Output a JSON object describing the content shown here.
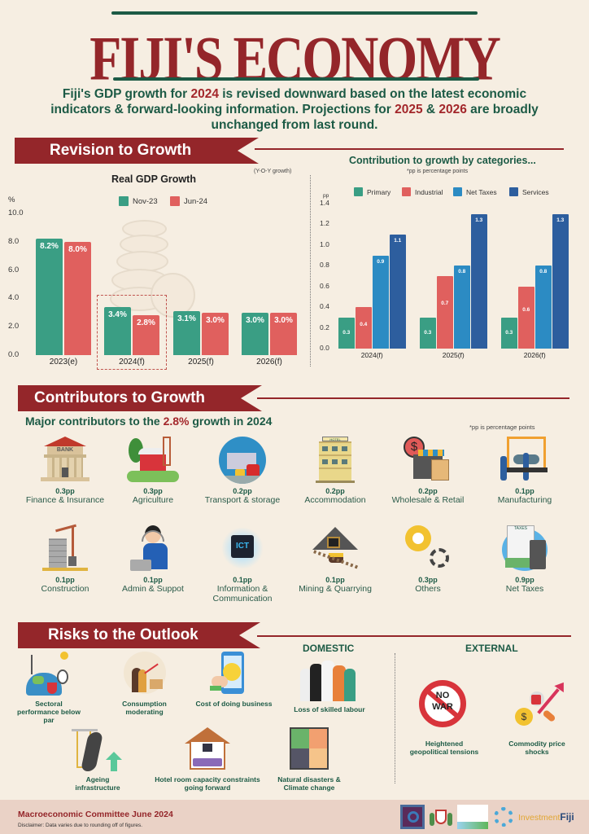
{
  "header": {
    "title": "FIJI'S ECONOMY",
    "intro_parts": [
      "Fiji's GDP growth for ",
      "2024",
      " is revised downward based on the latest economic indicators & forward-looking information. Projections for ",
      "2025",
      " & ",
      "2026",
      " are broadly unchanged from last round."
    ]
  },
  "sections": {
    "revision": "Revision to Growth",
    "contributors": "Contributors to Growth",
    "risks": "Risks to the Outlook"
  },
  "chart_data": [
    {
      "type": "bar",
      "title": "Real GDP Growth",
      "subtitle": "(Y-O-Y growth)",
      "ylabel": "%",
      "ylim": [
        0,
        10
      ],
      "yticks": [
        "0.0",
        "2.0",
        "4.0",
        "6.0",
        "8.0",
        "10.0"
      ],
      "categories": [
        "2023(e)",
        "2024(f)",
        "2025(f)",
        "2026(f)"
      ],
      "series": [
        {
          "name": "Nov-23",
          "color": "#3a9e84",
          "values": [
            8.2,
            3.4,
            3.1,
            3.0
          ],
          "labels": [
            "8.2%",
            "3.4%",
            "3.1%",
            "3.0%"
          ]
        },
        {
          "name": "Jun-24",
          "color": "#e0605e",
          "values": [
            8.0,
            2.8,
            3.0,
            3.0
          ],
          "labels": [
            "8.0%",
            "2.8%",
            "3.0%",
            "3.0%"
          ]
        }
      ],
      "highlight_category": "2024(f)",
      "grid": false,
      "legend_position": "top"
    },
    {
      "type": "bar",
      "title": "Contribution to growth by categories...",
      "subtitle": "*pp is percentage points",
      "ylabel": "pp",
      "ylim": [
        0,
        1.4
      ],
      "yticks": [
        "0.0",
        "0.2",
        "0.4",
        "0.6",
        "0.8",
        "1.0",
        "1.2",
        "1.4"
      ],
      "categories": [
        "2024(f)",
        "2025(f)",
        "2026(f)"
      ],
      "series": [
        {
          "name": "Primary",
          "color": "#3a9e84",
          "values": [
            0.3,
            0.3,
            0.3
          ],
          "labels": [
            "0.3",
            "0.3",
            "0.3"
          ]
        },
        {
          "name": "Industrial",
          "color": "#e0605e",
          "values": [
            0.4,
            0.7,
            0.6
          ],
          "labels": [
            "0.4",
            "0.7",
            "0.6"
          ]
        },
        {
          "name": "Net Taxes",
          "color": "#2c8bc3",
          "values": [
            0.9,
            0.8,
            0.8
          ],
          "labels": [
            "0.9",
            "0.8",
            "0.8"
          ]
        },
        {
          "name": "Services",
          "color": "#2d5e9e",
          "values": [
            1.1,
            1.3,
            1.3
          ],
          "labels": [
            "1.1",
            "1.3",
            "1.3"
          ]
        }
      ],
      "grid": false,
      "legend_position": "top"
    }
  ],
  "contributors": {
    "subtitle_parts": [
      "Major contributors to the ",
      "2.8%",
      " growth in 2024"
    ],
    "note": "*pp is percentage points",
    "items": [
      {
        "pp": "0.3pp",
        "name": "Finance & Insurance",
        "icon": "bank-icon"
      },
      {
        "pp": "0.3pp",
        "name": "Agriculture",
        "icon": "farm-icon"
      },
      {
        "pp": "0.2pp",
        "name": "Transport & storage",
        "icon": "transport-icon"
      },
      {
        "pp": "0.2pp",
        "name": "Accommodation",
        "icon": "hotel-icon"
      },
      {
        "pp": "0.2pp",
        "name": "Wholesale & Retail",
        "icon": "store-icon"
      },
      {
        "pp": "0.1pp",
        "name": "Manufacturing",
        "icon": "factory-icon"
      },
      {
        "pp": "0.1pp",
        "name": "Construction",
        "icon": "crane-icon"
      },
      {
        "pp": "0.1pp",
        "name": "Admin & Suppot",
        "icon": "support-agent-icon"
      },
      {
        "pp": "0.1pp",
        "name": "Information & Communication",
        "icon": "ict-chip-icon"
      },
      {
        "pp": "0.1pp",
        "name": "Mining & Quarrying",
        "icon": "mine-icon"
      },
      {
        "pp": "0.3pp",
        "name": "Others",
        "icon": "gears-icon"
      },
      {
        "pp": "0.9pp",
        "name": "Net Taxes",
        "icon": "taxes-calculator-icon"
      }
    ]
  },
  "risks": {
    "domestic_label": "DOMESTIC",
    "external_label": "EXTERNAL",
    "domestic": [
      {
        "name": "Sectoral performance below par",
        "icon": "energy-sectors-icon"
      },
      {
        "name": "Consumption moderating",
        "icon": "consumption-icon"
      },
      {
        "name": "Cost of doing business",
        "icon": "phone-smiley-icon"
      },
      {
        "name": "Loss of skilled labour",
        "icon": "workers-icon"
      },
      {
        "name": "Ageing infrastructure",
        "icon": "road-infrastructure-icon"
      },
      {
        "name": "Hotel room capacity constraints going forward",
        "icon": "hotel-room-icon"
      },
      {
        "name": "Natural disasters & Climate change",
        "icon": "climate-icon"
      }
    ],
    "external": [
      {
        "name": "Heightened geopolitical tensions",
        "icon": "no-war-icon",
        "sign_text": [
          "NO",
          "WAR"
        ]
      },
      {
        "name": "Commodity price shocks",
        "icon": "commodity-price-icon"
      }
    ]
  },
  "footer": {
    "title": "Macroeconomic Committee June 2024",
    "disclaimer": "Disclaimer: Data varies due to rounding off of figures.",
    "logos": [
      "rbf-logo",
      "fiji-coat-of-arms-logo",
      "fiji-bureau-of-statistics-logo",
      "ministry-logo",
      "investment-fiji-logo"
    ],
    "investment_fiji": {
      "prefix": "Investment",
      "suffix": "Fiji"
    }
  },
  "colors": {
    "brand_red": "#94262a",
    "brand_green": "#1c5a45",
    "background": "#f6eee2",
    "footer_bg": "#ead2c6"
  }
}
